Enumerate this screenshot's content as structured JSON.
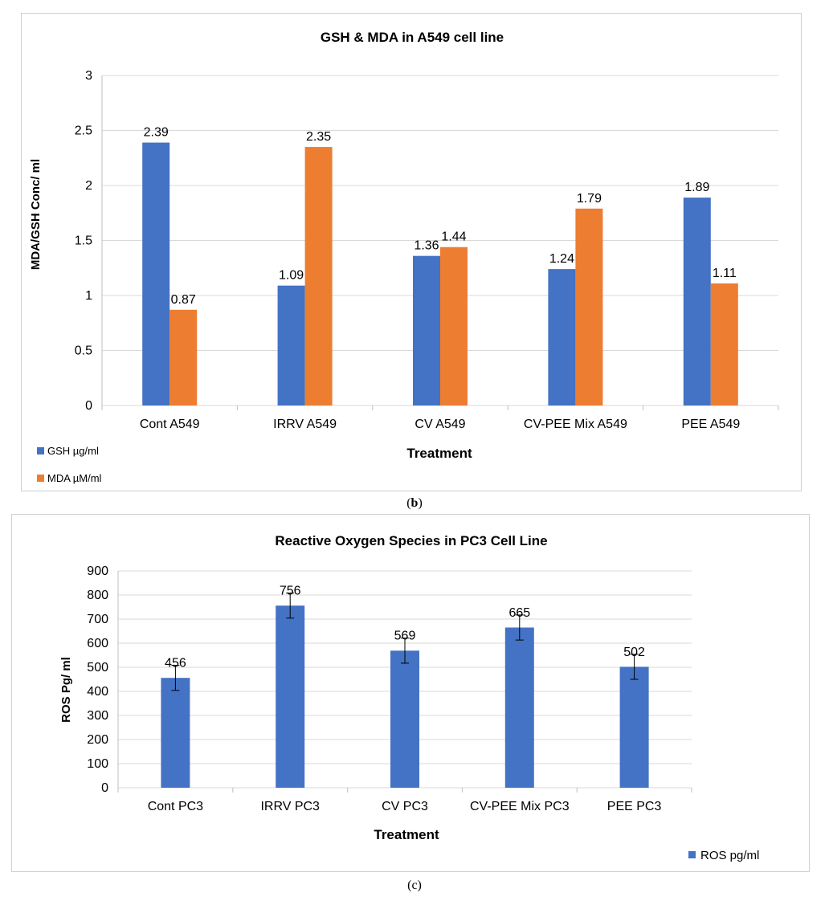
{
  "chart_data": [
    {
      "type": "bar",
      "title": "GSH & MDA in  A549 cell line",
      "xlabel": "Treatment",
      "ylabel": "MDA/GSH Conc/ ml",
      "categories": [
        "Cont A549",
        "IRRV A549",
        "CV A549",
        "CV-PEE Mix A549",
        "PEE A549"
      ],
      "series": [
        {
          "name": "GSH µg/ml",
          "values": [
            2.39,
            1.09,
            1.36,
            1.24,
            1.89
          ],
          "labels": [
            "2.39",
            "1.09",
            "1.36",
            "1.24",
            "1.89"
          ],
          "color": "#4472C4"
        },
        {
          "name": "MDA µM/ml",
          "values": [
            0.87,
            2.35,
            1.44,
            1.79,
            1.11
          ],
          "labels": [
            "0.87",
            "2.35",
            "1.44",
            "1.79",
            "1.11"
          ],
          "color": "#ED7D31"
        }
      ],
      "yticks": [
        "0",
        "0.5",
        "1",
        "1.5",
        "2",
        "2.5",
        "3"
      ],
      "ylim": [
        0,
        3
      ],
      "grid": true,
      "legend": "bottom-left",
      "caption_prefix": "(",
      "caption_letter": "b",
      "caption_suffix": ")"
    },
    {
      "type": "bar",
      "title": "Reactive Oxygen Species in PC3 Cell Line",
      "xlabel": "Treatment",
      "ylabel": "ROS Pg/ ml",
      "categories": [
        "Cont PC3",
        "IRRV PC3",
        "CV PC3",
        "CV-PEE Mix PC3",
        "PEE PC3"
      ],
      "series": [
        {
          "name": "ROS pg/ml",
          "values": [
            456,
            756,
            569,
            665,
            502
          ],
          "labels": [
            "456",
            "756",
            "569",
            "665",
            "502"
          ],
          "error": [
            52,
            52,
            52,
            52,
            52
          ],
          "color": "#4472C4"
        }
      ],
      "yticks": [
        "0",
        "100",
        "200",
        "300",
        "400",
        "500",
        "600",
        "700",
        "800",
        "900"
      ],
      "ylim": [
        0,
        900
      ],
      "grid": true,
      "legend": "bottom-right",
      "caption_text": "(c)"
    }
  ]
}
